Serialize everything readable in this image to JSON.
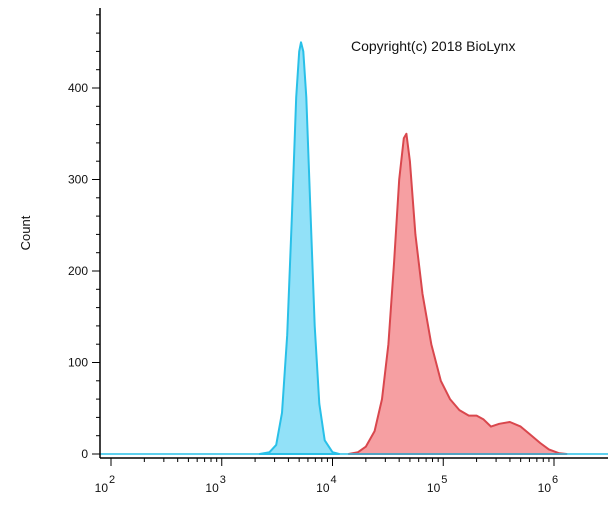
{
  "chart_data": {
    "type": "area",
    "annotation": "Copyright(c) 2018 BioLynx",
    "ylabel": "Count",
    "xlabel": "",
    "x_scale": "log",
    "xlim": [
      100,
      1000000
    ],
    "ylim": [
      0,
      500
    ],
    "y_ticks": [
      {
        "value": 0,
        "label": "0"
      },
      {
        "value": 100,
        "label": "100"
      },
      {
        "value": 200,
        "label": "200"
      },
      {
        "value": 300,
        "label": "300"
      },
      {
        "value": 400,
        "label": "400"
      }
    ],
    "x_ticks": [
      {
        "value": 100,
        "base": "10",
        "exp": "2"
      },
      {
        "value": 1000,
        "base": "10",
        "exp": "3"
      },
      {
        "value": 10000,
        "base": "10",
        "exp": "4"
      },
      {
        "value": 100000,
        "base": "10",
        "exp": "5"
      },
      {
        "value": 1000000,
        "base": "10",
        "exp": "6"
      }
    ],
    "grid": false,
    "series": [
      {
        "color": "#29c0e8",
        "fill": "#7fdcf7",
        "points": [
          [
            2200,
            0
          ],
          [
            2700,
            2
          ],
          [
            3100,
            10
          ],
          [
            3500,
            45
          ],
          [
            3900,
            130
          ],
          [
            4300,
            260
          ],
          [
            4700,
            390
          ],
          [
            5000,
            440
          ],
          [
            5200,
            450
          ],
          [
            5450,
            440
          ],
          [
            5800,
            390
          ],
          [
            6300,
            270
          ],
          [
            6900,
            140
          ],
          [
            7600,
            55
          ],
          [
            8500,
            15
          ],
          [
            10000,
            2
          ],
          [
            11500,
            0
          ]
        ]
      },
      {
        "color": "#d9474d",
        "fill": "#f58e92",
        "points": [
          [
            14000,
            0
          ],
          [
            17000,
            2
          ],
          [
            20000,
            8
          ],
          [
            24000,
            25
          ],
          [
            28000,
            60
          ],
          [
            32000,
            120
          ],
          [
            36000,
            210
          ],
          [
            40000,
            300
          ],
          [
            44000,
            345
          ],
          [
            46500,
            350
          ],
          [
            50000,
            320
          ],
          [
            56000,
            240
          ],
          [
            65000,
            175
          ],
          [
            78000,
            120
          ],
          [
            95000,
            80
          ],
          [
            115000,
            60
          ],
          [
            140000,
            48
          ],
          [
            170000,
            42
          ],
          [
            200000,
            42
          ],
          [
            230000,
            38
          ],
          [
            270000,
            30
          ],
          [
            320000,
            33
          ],
          [
            400000,
            35
          ],
          [
            500000,
            30
          ],
          [
            600000,
            22
          ],
          [
            750000,
            12
          ],
          [
            900000,
            5
          ],
          [
            1100000,
            1
          ],
          [
            1300000,
            0
          ]
        ]
      }
    ]
  }
}
